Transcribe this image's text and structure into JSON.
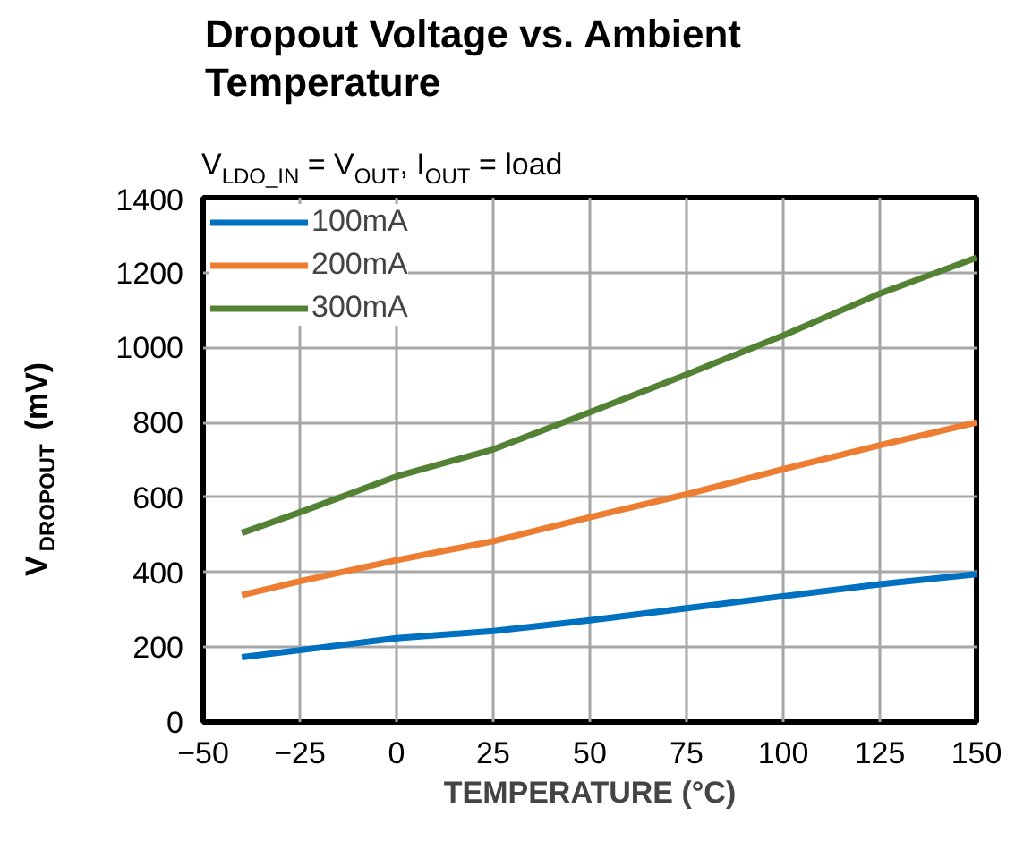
{
  "chart_data": {
    "type": "line",
    "title": "Dropout Voltage vs. Ambient\nTemperature",
    "subtitle": "V$_{LDO_IN}$ = V$_{OUT}$, I$_{OUT}$ = load",
    "xlabel": "TEMPERATURE (°C)",
    "ylabel": "V$_{DROPOUT}$ (mV)",
    "x": [
      -40,
      -25,
      0,
      25,
      50,
      75,
      100,
      125,
      150
    ],
    "series": [
      {
        "name": "100mA",
        "color": "#0070c0",
        "values": [
          173,
          192,
          224,
          243,
          272,
          304,
          336,
          368,
          395
        ]
      },
      {
        "name": "200mA",
        "color": "#ed7d31",
        "values": [
          339,
          376,
          432,
          483,
          547,
          608,
          675,
          739,
          800
        ]
      },
      {
        "name": "300mA",
        "color": "#548235",
        "values": [
          505,
          560,
          656,
          728,
          827,
          928,
          1032,
          1144,
          1240
        ]
      }
    ],
    "xlim": [
      -50,
      150
    ],
    "xticks": [
      -50,
      -25,
      0,
      25,
      50,
      75,
      100,
      125,
      150
    ],
    "ylim": [
      0,
      1400
    ],
    "yticks": [
      0,
      200,
      400,
      600,
      800,
      1000,
      1200,
      1400
    ],
    "grid": true,
    "legend": "top left",
    "marker": "none",
    "line_style": "solid"
  }
}
